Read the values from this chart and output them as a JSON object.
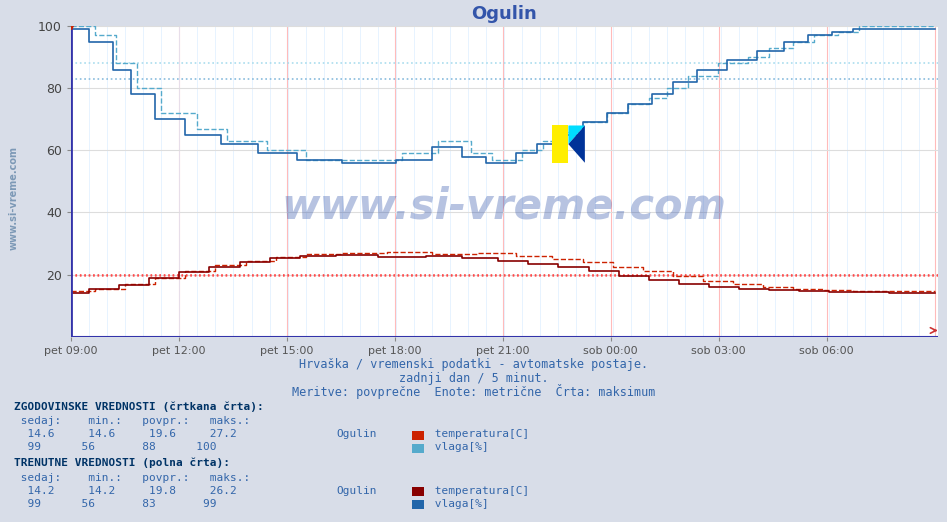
{
  "title": "Ogulin",
  "title_color": "#3355aa",
  "bg_color": "#d8dde8",
  "plot_bg_color": "#ffffff",
  "n_points": 288,
  "yticks": [
    20,
    40,
    60,
    80,
    100
  ],
  "x_labels": [
    "pet 09:00",
    "pet 12:00",
    "pet 15:00",
    "pet 18:00",
    "pet 21:00",
    "sob 00:00",
    "sob 03:00",
    "sob 06:00"
  ],
  "temp_hist_color": "#cc2200",
  "temp_curr_color": "#880000",
  "vlaga_hist_color": "#55aacc",
  "vlaga_curr_color": "#2266aa",
  "temp_avg_color": "#ff5555",
  "vlaga_avg_color": "#88ccee",
  "temp_hist_avg": 19.6,
  "temp_hist_max": 27.2,
  "temp_hist_min": 14.6,
  "temp_hist_cur": 14.6,
  "vlaga_hist_avg": 88,
  "vlaga_hist_max": 100,
  "vlaga_hist_min": 56,
  "vlaga_hist_cur": 99,
  "temp_curr_avg": 19.8,
  "temp_curr_max": 26.2,
  "temp_curr_min": 14.2,
  "temp_curr_cur": 14.2,
  "vlaga_curr_avg": 83,
  "vlaga_curr_max": 99,
  "vlaga_curr_min": 56,
  "vlaga_curr_cur": 99,
  "subtitle1": "Hrvaška / vremenski podatki - avtomatske postaje.",
  "subtitle2": "zadnji dan / 5 minut.",
  "subtitle3": "Meritve: povprečne  Enote: metrične  Črta: maksimum",
  "hist_label": "ZGODOVINSKE VREDNOSTI (črtkana črta):",
  "curr_label": "TRENUTNE VREDNOSTI (polna črta):",
  "temp_label": "temperatura[C]",
  "vlaga_label": "vlaga[%]",
  "station": "Ogulin",
  "grid_h_color": "#dddddd",
  "grid_v_major_color": "#ffbbbb",
  "grid_v_minor_color": "#ddeeff"
}
